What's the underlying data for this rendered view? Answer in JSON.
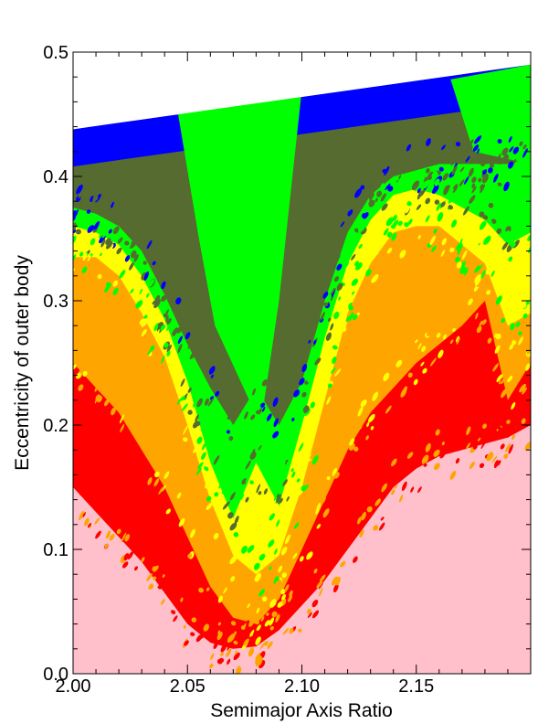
{
  "chart_data": {
    "type": "area",
    "xlabel": "Semimajor Axis Ratio",
    "ylabel": "Eccentricity of outer body",
    "xlim": [
      2.0,
      2.2
    ],
    "ylim": [
      0.0,
      0.5
    ],
    "x_ticks": [
      2.0,
      2.05,
      2.1,
      2.15
    ],
    "x_tick_labels": [
      "2.00",
      "2.05",
      "2.10",
      "2.15"
    ],
    "y_ticks": [
      0.0,
      0.1,
      0.2,
      0.3,
      0.4,
      0.5
    ],
    "y_tick_labels": [
      "0.0",
      "0.1",
      "0.2",
      "0.3",
      "0.4",
      "0.5"
    ],
    "grid": false,
    "legend": "none",
    "upper_boundary": {
      "x": [
        2.0,
        2.2
      ],
      "y": [
        0.438,
        0.49
      ]
    },
    "x": [
      2.0,
      2.01,
      2.02,
      2.03,
      2.04,
      2.05,
      2.06,
      2.07,
      2.08,
      2.09,
      2.1,
      2.11,
      2.12,
      2.13,
      2.14,
      2.15,
      2.16,
      2.17,
      2.18,
      2.19,
      2.2
    ],
    "series": [
      {
        "color": "#ffc0cb",
        "values": [
          0.0,
          0.0,
          0.0,
          0.0,
          0.0,
          0.0,
          0.0,
          0.0,
          0.0,
          0.0,
          0.0,
          0.0,
          0.0,
          0.0,
          0.0,
          0.0,
          0.0,
          0.0,
          0.0,
          0.0,
          0.0
        ],
        "top": [
          0.15,
          0.13,
          0.11,
          0.09,
          0.065,
          0.04,
          0.025,
          0.02,
          0.022,
          0.035,
          0.055,
          0.075,
          0.1,
          0.125,
          0.15,
          0.165,
          0.175,
          0.18,
          0.185,
          0.19,
          0.2
        ]
      },
      {
        "color": "#ff0000",
        "top": [
          0.25,
          0.23,
          0.21,
          0.18,
          0.15,
          0.11,
          0.07,
          0.045,
          0.04,
          0.06,
          0.1,
          0.14,
          0.18,
          0.21,
          0.23,
          0.25,
          0.265,
          0.28,
          0.3,
          0.22,
          0.25
        ]
      },
      {
        "color": "#ffa500",
        "top": [
          0.335,
          0.335,
          0.32,
          0.29,
          0.255,
          0.2,
          0.14,
          0.095,
          0.08,
          0.095,
          0.15,
          0.22,
          0.29,
          0.33,
          0.355,
          0.36,
          0.36,
          0.345,
          0.33,
          0.28,
          0.29
        ]
      },
      {
        "color": "#ffff00",
        "top": [
          0.36,
          0.355,
          0.345,
          0.32,
          0.285,
          0.235,
          0.17,
          0.125,
          0.17,
          0.135,
          0.2,
          0.27,
          0.33,
          0.365,
          0.385,
          0.39,
          0.385,
          0.375,
          0.365,
          0.345,
          0.355
        ]
      },
      {
        "color": "#00ff00",
        "top": [
          0.375,
          0.37,
          0.36,
          0.34,
          0.305,
          0.265,
          0.23,
          0.2,
          0.23,
          0.2,
          0.235,
          0.3,
          0.355,
          0.385,
          0.4,
          0.405,
          0.41,
          0.41,
          0.41,
          0.41,
          0.415
        ]
      },
      {
        "color": "#556b2f",
        "note_top_region": "olive band between green and blue, split by central green wedge"
      },
      {
        "color": "#0000ff",
        "top_is_upper_boundary": true
      }
    ]
  }
}
